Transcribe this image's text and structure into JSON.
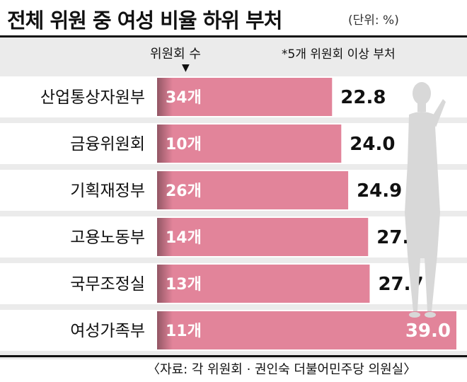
{
  "title": "전체 위원 중 여성 비율 하위 부처",
  "unit": "(단위: %)",
  "column_header": "위원회 수",
  "note": "*5개 위원회 이상 부처",
  "source": "〈자료: 각 위원회 · 권인숙 더불어민주당 의원실〉",
  "colors": {
    "bar": "#e2849a",
    "row_bg": "#ffffff",
    "page_bg": "#ebebeb"
  },
  "chart_data": {
    "type": "bar",
    "orientation": "horizontal",
    "title": "전체 위원 중 여성 비율 하위 부처",
    "categories": [
      "산업통상자원부",
      "금융위원회",
      "기획재정부",
      "고용노동부",
      "국무조정실",
      "여성가족부"
    ],
    "values": [
      22.8,
      24.0,
      24.9,
      27.5,
      27.7,
      39.0
    ],
    "value_labels": [
      "22.8",
      "24.0",
      "24.9",
      "27.5",
      "27.7",
      "39.0"
    ],
    "committee_counts": [
      "34개",
      "10개",
      "26개",
      "14개",
      "13개",
      "11개"
    ],
    "grid": false
  }
}
